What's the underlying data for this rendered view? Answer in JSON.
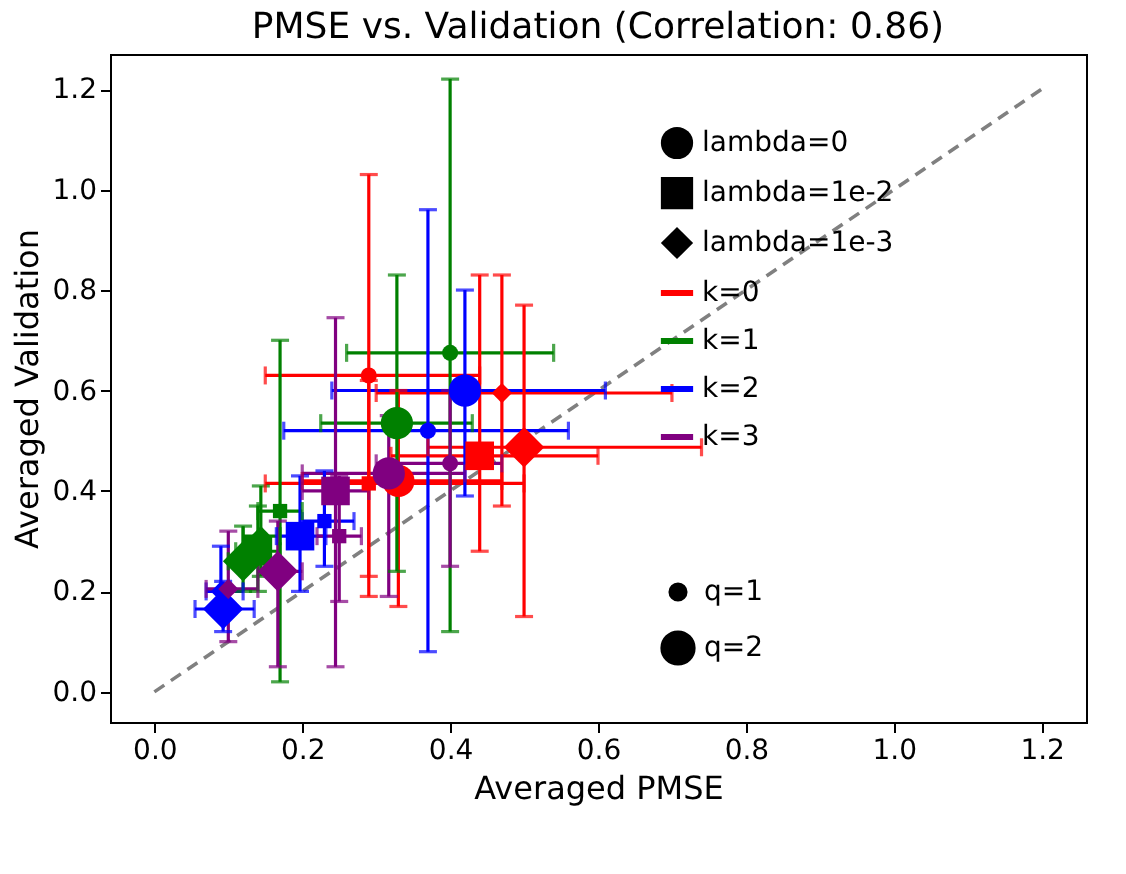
{
  "chart_data": {
    "type": "bubble",
    "title": "PMSE vs. Validation (Correlation: 0.86)",
    "xlabel": "Averaged PMSE",
    "ylabel": "Averaged Validation",
    "xlim": [
      -0.06,
      1.26
    ],
    "ylim": [
      -0.06,
      1.27
    ],
    "xticks": [
      {
        "value": 0,
        "label": "0.0"
      },
      {
        "value": 0.2,
        "label": "0.2"
      },
      {
        "value": 0.4,
        "label": "0.4"
      },
      {
        "value": 0.6,
        "label": "0.6"
      },
      {
        "value": 0.8,
        "label": "0.8"
      },
      {
        "value": 1.0,
        "label": "1.0"
      },
      {
        "value": 1.2,
        "label": "1.2"
      }
    ],
    "yticks": [
      {
        "value": 0,
        "label": "0.0"
      },
      {
        "value": 0.2,
        "label": "0.2"
      },
      {
        "value": 0.4,
        "label": "0.4"
      },
      {
        "value": 0.6,
        "label": "0.6"
      },
      {
        "value": 0.8,
        "label": "0.8"
      },
      {
        "value": 1.0,
        "label": "1.0"
      },
      {
        "value": 1.2,
        "label": "1.2"
      }
    ],
    "grid": false,
    "legend": "right",
    "size_legend": [
      {
        "value": 0.25,
        "label": "q=1"
      },
      {
        "value": 1,
        "label": "q=2"
      }
    ],
    "series": [
      {
        "name": "lambda=0",
        "color": "#000000",
        "marker": "circle"
      },
      {
        "name": "lambda=1e-2",
        "color": "#000000",
        "marker": "square"
      },
      {
        "name": "lambda=1e-3",
        "color": "#000000",
        "marker": "diamond"
      },
      {
        "name": "k=0",
        "type": "line",
        "color": "#ff0000"
      },
      {
        "name": "k=1",
        "type": "line",
        "color": "#008000"
      },
      {
        "name": "k=2",
        "type": "line",
        "color": "#0000ff"
      },
      {
        "name": "k=3",
        "type": "line",
        "color": "#800080"
      },
      {
        "color": "#ff0000",
        "marker": "circle",
        "x": [
          0.29,
          0.33
        ],
        "values": [
          0.63,
          0.42
        ],
        "sizes": [
          0.25,
          1
        ],
        "errors": [
          [
            0.23,
            1.03
          ],
          [
            0.17,
            0.6
          ]
        ],
        "xerrors": [
          [
            0.15,
            0.44
          ],
          [
            0.2,
            0.47
          ]
        ]
      },
      {
        "color": "#ff0000",
        "marker": "square",
        "x": [
          0.29,
          0.44
        ],
        "values": [
          0.415,
          0.47
        ],
        "sizes": [
          0.25,
          1
        ],
        "errors": [
          [
            0.19,
            0.62
          ],
          [
            0.28,
            0.83
          ]
        ],
        "xerrors": [
          [
            0.15,
            0.5
          ],
          [
            0.32,
            0.6
          ]
        ]
      },
      {
        "color": "#ff0000",
        "marker": "diamond",
        "x": [
          0.47,
          0.5
        ],
        "values": [
          0.595,
          0.487
        ],
        "sizes": [
          0.25,
          1
        ],
        "errors": [
          [
            0.37,
            0.83
          ],
          [
            0.15,
            0.77
          ]
        ],
        "xerrors": [
          [
            0.3,
            0.7
          ],
          [
            0.37,
            0.74
          ]
        ]
      },
      {
        "color": "#008000",
        "marker": "circle",
        "x": [
          0.4,
          0.328
        ],
        "values": [
          0.675,
          0.535
        ],
        "sizes": [
          0.25,
          1
        ],
        "errors": [
          [
            0.12,
            1.22
          ],
          [
            0.24,
            0.83
          ]
        ],
        "xerrors": [
          [
            0.26,
            0.54
          ],
          [
            0.225,
            0.43
          ]
        ]
      },
      {
        "color": "#008000",
        "marker": "square",
        "x": [
          0.17,
          0.14
        ],
        "values": [
          0.36,
          0.28
        ],
        "sizes": [
          0.25,
          1
        ],
        "errors": [
          [
            0.02,
            0.7
          ],
          [
            0.2,
            0.37
          ]
        ],
        "xerrors": [
          [
            0.14,
            0.2
          ],
          [
            0.11,
            0.17
          ]
        ]
      },
      {
        "color": "#008000",
        "marker": "diamond",
        "x": [
          0.144,
          0.12
        ],
        "values": [
          0.31,
          0.26
        ],
        "sizes": [
          0.25,
          1
        ],
        "errors": [
          [
            0.23,
            0.41
          ],
          [
            0.2,
            0.33
          ]
        ],
        "xerrors": [
          [
            0.12,
            0.17
          ],
          [
            0.1,
            0.15
          ]
        ]
      },
      {
        "color": "#0000ff",
        "marker": "circle",
        "x": [
          0.37,
          0.42
        ],
        "values": [
          0.52,
          0.6
        ],
        "sizes": [
          0.25,
          1
        ],
        "errors": [
          [
            0.08,
            0.96
          ],
          [
            0.39,
            0.8
          ]
        ],
        "xerrors": [
          [
            0.175,
            0.56
          ],
          [
            0.24,
            0.61
          ]
        ]
      },
      {
        "color": "#0000ff",
        "marker": "square",
        "x": [
          0.23,
          0.197
        ],
        "values": [
          0.34,
          0.31
        ],
        "sizes": [
          0.25,
          1
        ],
        "errors": [
          [
            0.25,
            0.44
          ],
          [
            0.2,
            0.43
          ]
        ],
        "xerrors": [
          [
            0.2,
            0.27
          ],
          [
            0.165,
            0.232
          ]
        ]
      },
      {
        "color": "#0000ff",
        "marker": "diamond",
        "x": [
          0.09,
          0.093
        ],
        "values": [
          0.2,
          0.165
        ],
        "sizes": [
          0.25,
          1
        ],
        "errors": [
          [
            0.15,
            0.29
          ],
          [
            0.12,
            0.22
          ]
        ],
        "xerrors": [
          [
            0.07,
            0.12
          ],
          [
            0.055,
            0.135
          ]
        ]
      },
      {
        "color": "#800080",
        "marker": "circle",
        "x": [
          0.4,
          0.317
        ],
        "values": [
          0.455,
          0.435
        ],
        "sizes": [
          0.25,
          1
        ],
        "errors": [
          [
            0.25,
            0.6
          ],
          [
            0.19,
            0.55
          ]
        ],
        "xerrors": [
          [
            0.3,
            0.47
          ],
          [
            0.2,
            0.42
          ]
        ]
      },
      {
        "color": "#800080",
        "marker": "square",
        "x": [
          0.25,
          0.245
        ],
        "values": [
          0.31,
          0.4
        ],
        "sizes": [
          0.25,
          1
        ],
        "errors": [
          [
            0.18,
            0.43
          ],
          [
            0.05,
            0.745
          ]
        ],
        "xerrors": [
          [
            0.22,
            0.28
          ],
          [
            0.2,
            0.29
          ]
        ]
      },
      {
        "color": "#800080",
        "marker": "diamond",
        "x": [
          0.1,
          0.167
        ],
        "values": [
          0.205,
          0.24
        ],
        "sizes": [
          0.25,
          1
        ],
        "errors": [
          [
            0.1,
            0.32
          ],
          [
            0.05,
            0.34
          ]
        ],
        "xerrors": [
          [
            0.07,
            0.14
          ],
          [
            0.14,
            0.2
          ]
        ]
      },
      {
        "type": "line",
        "color": "#808080",
        "line_style": "dashed",
        "x": [
          0,
          1.2
        ],
        "values": [
          0,
          1.2
        ]
      }
    ]
  }
}
